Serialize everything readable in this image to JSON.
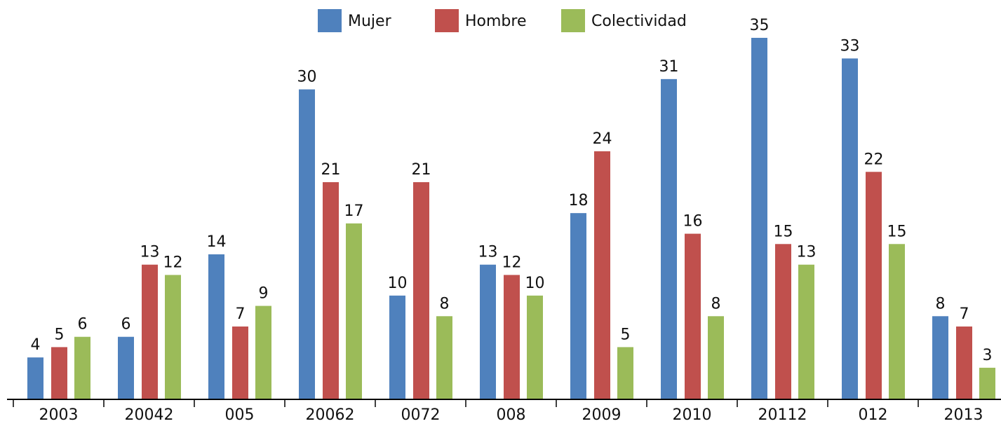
{
  "chart_data": {
    "type": "bar",
    "categories": [
      "2003",
      "20042",
      "005",
      "20062",
      "0072",
      "008",
      "2009",
      "2010",
      "20112",
      "012",
      "2013"
    ],
    "series": [
      {
        "name": "Mujer",
        "color": "#4f81bd",
        "values": [
          4,
          6,
          14,
          30,
          10,
          13,
          18,
          31,
          35,
          33,
          8
        ]
      },
      {
        "name": "Hombre",
        "color": "#c0504d",
        "values": [
          5,
          13,
          7,
          21,
          21,
          12,
          24,
          16,
          15,
          22,
          7
        ]
      },
      {
        "name": "Colectividad",
        "color": "#9bbb59",
        "values": [
          6,
          12,
          9,
          17,
          8,
          10,
          5,
          8,
          13,
          15,
          3
        ]
      }
    ],
    "legend": "top"
  }
}
